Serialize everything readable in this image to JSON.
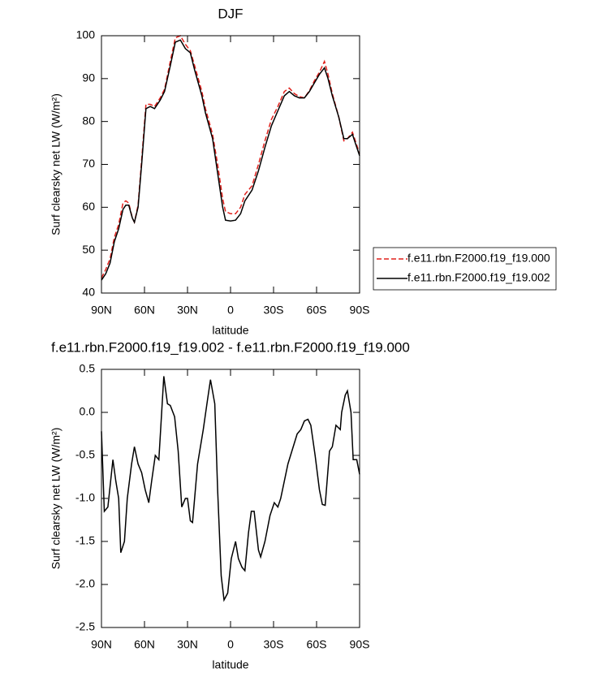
{
  "chart_data": [
    {
      "type": "line",
      "title": "DJF",
      "xlabel": "latitude",
      "ylabel": "Surf clearsky net LW (W/m²)",
      "xlim": [
        90,
        -90
      ],
      "xticks": [
        {
          "value": 90,
          "label": "90N"
        },
        {
          "value": 60,
          "label": "60N"
        },
        {
          "value": 30,
          "label": "30N"
        },
        0,
        {
          "value": -30,
          "label": "30S"
        },
        {
          "value": -60,
          "label": "60S"
        },
        {
          "value": -90,
          "label": "90S"
        }
      ],
      "ylim": [
        40,
        100
      ],
      "yticks": [
        40,
        50,
        60,
        70,
        80,
        90,
        100
      ],
      "legend": "right",
      "x": [
        90,
        87,
        84,
        81,
        78,
        75,
        73,
        71,
        68.5,
        67,
        64.5,
        62,
        59,
        56,
        53,
        49,
        46,
        42,
        38.5,
        35,
        31.5,
        28,
        25,
        20,
        17.5,
        12.5,
        9,
        5.5,
        3.5,
        0,
        -3.5,
        -7,
        -10,
        -15,
        -19.5,
        -24,
        -28.5,
        -33,
        -37.5,
        -41,
        -44.5,
        -48,
        -51.5,
        -55,
        -58.5,
        -62,
        -65.5,
        -68,
        -71,
        -75.5,
        -79,
        -81.5,
        -85,
        -87,
        -90
      ],
      "series": [
        {
          "name": "f.e11.rbn.F2000.f19_f19.000",
          "color": "#e0201b",
          "dash": true,
          "values": [
            43.5,
            45.5,
            48,
            53,
            56,
            61,
            61.5,
            61,
            57.5,
            56.5,
            60.5,
            71,
            84,
            84,
            83.5,
            85.5,
            87.5,
            94,
            99.5,
            100,
            98,
            96.5,
            93,
            87,
            83,
            77,
            70,
            62,
            59,
            58.5,
            58.5,
            60,
            63,
            65,
            70,
            75.5,
            80.5,
            83.5,
            87,
            87.8,
            86.5,
            85.8,
            85.5,
            87.2,
            89.5,
            91.5,
            94,
            91,
            86.5,
            81,
            75.5,
            76,
            77.5,
            75.5,
            72.5
          ]
        },
        {
          "name": "f.e11.rbn.F2000.f19_f19.002",
          "color": "#000000",
          "dash": false,
          "values": [
            43,
            44.5,
            47,
            52,
            55,
            59.5,
            60.5,
            60.5,
            57.5,
            56.5,
            60,
            70,
            83,
            83.5,
            83,
            85,
            87,
            93,
            98.5,
            99,
            97,
            96,
            92,
            86,
            82,
            76,
            68,
            60,
            57,
            56.8,
            57,
            58.5,
            61.5,
            64,
            68.5,
            74,
            79,
            82.5,
            86,
            87,
            86,
            85.5,
            85.5,
            87,
            89,
            91,
            92.5,
            90,
            86,
            81,
            76,
            76,
            77,
            75,
            72
          ]
        }
      ]
    },
    {
      "type": "line",
      "title": "f.e11.rbn.F2000.f19_f19.002 - f.e11.rbn.F2000.f19_f19.000",
      "xlabel": "latitude",
      "ylabel": "Surf clearsky net LW (W/m²)",
      "xlim": [
        90,
        -90
      ],
      "xticks": [
        {
          "value": 90,
          "label": "90N"
        },
        {
          "value": 60,
          "label": "60N"
        },
        {
          "value": 30,
          "label": "30N"
        },
        0,
        {
          "value": -30,
          "label": "30S"
        },
        {
          "value": -60,
          "label": "60S"
        },
        {
          "value": -90,
          "label": "90S"
        }
      ],
      "ylim": [
        -2.5,
        0.5
      ],
      "yticks": [
        -2.5,
        {
          "value": -2,
          "label": "-2.0"
        },
        -1.5,
        {
          "value": -1,
          "label": "-1.0"
        },
        -0.5,
        {
          "value": 0,
          "label": "0.0"
        },
        0.5
      ],
      "x": [
        90,
        88,
        85.5,
        82,
        80,
        78,
        76.5,
        74,
        72,
        69,
        67,
        64.5,
        62,
        59.5,
        57,
        55,
        52.5,
        50,
        46.5,
        44,
        42,
        39,
        36.5,
        34,
        31.5,
        30,
        28,
        26.5,
        23,
        19,
        16,
        14,
        11,
        9,
        6.5,
        4.5,
        2,
        -0.5,
        -3.5,
        -5.5,
        -8,
        -10,
        -12.5,
        -14.5,
        -16.5,
        -19.5,
        -21,
        -24,
        -27.5,
        -30.5,
        -33,
        -35,
        -40,
        -46.5,
        -49,
        -51.5,
        -54,
        -56,
        -59,
        -62,
        -64,
        -66,
        -69,
        -71,
        -73.5,
        -76.5,
        -77.5,
        -80,
        -81.5,
        -84,
        -85.5,
        -88,
        -90
      ],
      "series": [
        {
          "color": "#000000",
          "dash": false,
          "values": [
            -0.22,
            -1.15,
            -1.1,
            -0.55,
            -0.8,
            -1.0,
            -1.63,
            -1.5,
            -1.0,
            -0.6,
            -0.4,
            -0.6,
            -0.7,
            -0.9,
            -1.05,
            -0.8,
            -0.5,
            -0.55,
            0.42,
            0.1,
            0.08,
            -0.05,
            -0.45,
            -1.1,
            -1.0,
            -1.0,
            -1.26,
            -1.28,
            -0.6,
            -0.2,
            0.15,
            0.38,
            0.1,
            -0.9,
            -1.9,
            -2.18,
            -2.1,
            -1.7,
            -1.5,
            -1.7,
            -1.8,
            -1.84,
            -1.4,
            -1.15,
            -1.15,
            -1.6,
            -1.68,
            -1.5,
            -1.2,
            -1.05,
            -1.1,
            -1.0,
            -0.6,
            -0.25,
            -0.2,
            -0.1,
            -0.08,
            -0.15,
            -0.5,
            -0.9,
            -1.07,
            -1.08,
            -0.45,
            -0.4,
            -0.15,
            -0.2,
            0.0,
            0.2,
            0.25,
            0.0,
            -0.55,
            -0.55,
            -0.72
          ]
        }
      ]
    }
  ]
}
